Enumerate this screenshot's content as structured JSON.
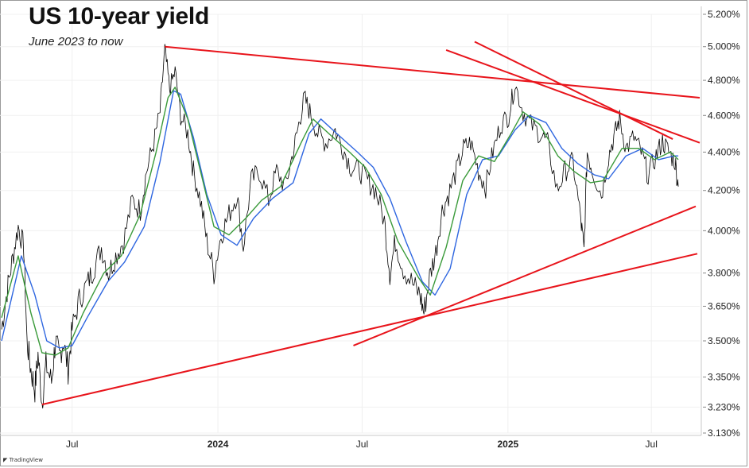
{
  "title": "US 10-year yield",
  "subtitle": "June 2023 to now",
  "logo_text": "TradingView",
  "colors": {
    "price": "#000000",
    "ma_fast": "#3a9a3a",
    "ma_slow": "#2e66e0",
    "trendline": "#e8141b"
  },
  "chart_data": {
    "type": "line",
    "title": "US 10-year yield",
    "subtitle": "June 2023 to now",
    "y_scale": "log",
    "ylim": [
      3.13,
      5.2
    ],
    "xlim": [
      "2023-04-01",
      "2025-08-31"
    ],
    "y_ticks": [
      "5.200%",
      "5.000%",
      "4.800%",
      "4.600%",
      "4.400%",
      "4.200%",
      "4.000%",
      "3.800%",
      "3.650%",
      "3.500%",
      "3.350%",
      "3.230%",
      "3.130%"
    ],
    "x_ticks": [
      {
        "label": "Jul",
        "date": "2023-07-01"
      },
      {
        "label": "2024",
        "date": "2024-01-01"
      },
      {
        "label": "Jul",
        "date": "2024-07-01"
      },
      {
        "label": "2025",
        "date": "2025-01-01"
      },
      {
        "label": "Jul",
        "date": "2025-07-01"
      }
    ],
    "grid": true,
    "series": [
      {
        "kind": "price",
        "points": [
          [
            "2023-04-03",
            3.55
          ],
          [
            "2023-04-10",
            3.72
          ],
          [
            "2023-04-17",
            3.87
          ],
          [
            "2023-04-24",
            4.02
          ],
          [
            "2023-05-01",
            3.92
          ],
          [
            "2023-05-05",
            3.5
          ],
          [
            "2023-05-10",
            3.38
          ],
          [
            "2023-05-15",
            3.3
          ],
          [
            "2023-05-19",
            3.44
          ],
          [
            "2023-05-24",
            3.25
          ],
          [
            "2023-05-29",
            3.4
          ],
          [
            "2023-06-05",
            3.33
          ],
          [
            "2023-06-10",
            3.5
          ],
          [
            "2023-06-15",
            3.43
          ],
          [
            "2023-06-20",
            3.5
          ],
          [
            "2023-06-26",
            3.38
          ],
          [
            "2023-07-01",
            3.55
          ],
          [
            "2023-07-10",
            3.68
          ],
          [
            "2023-07-20",
            3.75
          ],
          [
            "2023-07-28",
            3.82
          ],
          [
            "2023-08-07",
            3.92
          ],
          [
            "2023-08-16",
            3.8
          ],
          [
            "2023-08-25",
            3.88
          ],
          [
            "2023-09-04",
            3.95
          ],
          [
            "2023-09-15",
            4.15
          ],
          [
            "2023-09-25",
            4.1
          ],
          [
            "2023-10-03",
            4.3
          ],
          [
            "2023-10-12",
            4.45
          ],
          [
            "2023-10-20",
            4.62
          ],
          [
            "2023-10-26",
            4.98
          ],
          [
            "2023-11-01",
            4.75
          ],
          [
            "2023-11-08",
            4.85
          ],
          [
            "2023-11-15",
            4.6
          ],
          [
            "2023-11-24",
            4.5
          ],
          [
            "2023-12-01",
            4.3
          ],
          [
            "2023-12-10",
            4.15
          ],
          [
            "2023-12-18",
            3.95
          ],
          [
            "2023-12-27",
            3.8
          ],
          [
            "2024-01-05",
            3.98
          ],
          [
            "2024-01-15",
            4.08
          ],
          [
            "2024-01-25",
            4.18
          ],
          [
            "2024-02-02",
            3.92
          ],
          [
            "2024-02-12",
            4.25
          ],
          [
            "2024-02-22",
            4.3
          ],
          [
            "2024-03-05",
            4.15
          ],
          [
            "2024-03-15",
            4.3
          ],
          [
            "2024-03-26",
            4.22
          ],
          [
            "2024-04-05",
            4.4
          ],
          [
            "2024-04-12",
            4.55
          ],
          [
            "2024-04-19",
            4.7
          ],
          [
            "2024-04-26",
            4.62
          ],
          [
            "2024-05-06",
            4.5
          ],
          [
            "2024-05-16",
            4.45
          ],
          [
            "2024-05-28",
            4.52
          ],
          [
            "2024-06-07",
            4.42
          ],
          [
            "2024-06-17",
            4.32
          ],
          [
            "2024-06-28",
            4.3
          ],
          [
            "2024-07-08",
            4.25
          ],
          [
            "2024-07-18",
            4.2
          ],
          [
            "2024-07-29",
            4.05
          ],
          [
            "2024-08-05",
            3.8
          ],
          [
            "2024-08-12",
            3.95
          ],
          [
            "2024-08-22",
            3.82
          ],
          [
            "2024-09-03",
            3.75
          ],
          [
            "2024-09-12",
            3.7
          ],
          [
            "2024-09-17",
            3.62
          ],
          [
            "2024-09-24",
            3.78
          ],
          [
            "2024-10-02",
            3.9
          ],
          [
            "2024-10-10",
            4.1
          ],
          [
            "2024-10-18",
            4.18
          ],
          [
            "2024-10-28",
            4.3
          ],
          [
            "2024-11-06",
            4.42
          ],
          [
            "2024-11-15",
            4.45
          ],
          [
            "2024-11-25",
            4.3
          ],
          [
            "2024-12-04",
            4.22
          ],
          [
            "2024-12-13",
            4.4
          ],
          [
            "2024-12-23",
            4.55
          ],
          [
            "2025-01-02",
            4.6
          ],
          [
            "2025-01-10",
            4.78
          ],
          [
            "2025-01-20",
            4.62
          ],
          [
            "2025-01-30",
            4.55
          ],
          [
            "2025-02-10",
            4.5
          ],
          [
            "2025-02-20",
            4.45
          ],
          [
            "2025-03-04",
            4.2
          ],
          [
            "2025-03-14",
            4.3
          ],
          [
            "2025-03-24",
            4.35
          ],
          [
            "2025-04-03",
            4.05
          ],
          [
            "2025-04-07",
            3.9
          ],
          [
            "2025-04-11",
            4.4
          ],
          [
            "2025-04-18",
            4.3
          ],
          [
            "2025-04-29",
            4.18
          ],
          [
            "2025-05-08",
            4.38
          ],
          [
            "2025-05-16",
            4.5
          ],
          [
            "2025-05-22",
            4.58
          ],
          [
            "2025-05-30",
            4.42
          ],
          [
            "2025-06-09",
            4.48
          ],
          [
            "2025-06-18",
            4.4
          ],
          [
            "2025-06-27",
            4.28
          ],
          [
            "2025-07-07",
            4.38
          ],
          [
            "2025-07-15",
            4.46
          ],
          [
            "2025-07-23",
            4.4
          ],
          [
            "2025-07-31",
            4.35
          ],
          [
            "2025-08-04",
            4.22
          ]
        ]
      },
      {
        "kind": "ma_fast",
        "points": [
          [
            "2023-04-03",
            3.6
          ],
          [
            "2023-04-24",
            3.88
          ],
          [
            "2023-05-10",
            3.62
          ],
          [
            "2023-05-24",
            3.45
          ],
          [
            "2023-06-10",
            3.44
          ],
          [
            "2023-06-26",
            3.47
          ],
          [
            "2023-07-15",
            3.62
          ],
          [
            "2023-08-10",
            3.8
          ],
          [
            "2023-09-01",
            3.88
          ],
          [
            "2023-09-25",
            4.08
          ],
          [
            "2023-10-15",
            4.4
          ],
          [
            "2023-10-30",
            4.7
          ],
          [
            "2023-11-08",
            4.76
          ],
          [
            "2023-11-24",
            4.58
          ],
          [
            "2023-12-10",
            4.3
          ],
          [
            "2023-12-27",
            4.02
          ],
          [
            "2024-01-15",
            3.98
          ],
          [
            "2024-02-05",
            4.06
          ],
          [
            "2024-02-25",
            4.15
          ],
          [
            "2024-03-20",
            4.22
          ],
          [
            "2024-04-15",
            4.45
          ],
          [
            "2024-04-30",
            4.58
          ],
          [
            "2024-05-20",
            4.5
          ],
          [
            "2024-06-15",
            4.4
          ],
          [
            "2024-07-05",
            4.32
          ],
          [
            "2024-07-25",
            4.18
          ],
          [
            "2024-08-15",
            3.95
          ],
          [
            "2024-09-10",
            3.78
          ],
          [
            "2024-09-25",
            3.7
          ],
          [
            "2024-10-15",
            3.92
          ],
          [
            "2024-11-05",
            4.25
          ],
          [
            "2024-11-25",
            4.38
          ],
          [
            "2024-12-15",
            4.35
          ],
          [
            "2025-01-05",
            4.5
          ],
          [
            "2025-01-20",
            4.62
          ],
          [
            "2025-02-10",
            4.55
          ],
          [
            "2025-03-05",
            4.38
          ],
          [
            "2025-03-25",
            4.3
          ],
          [
            "2025-04-15",
            4.24
          ],
          [
            "2025-05-01",
            4.25
          ],
          [
            "2025-05-25",
            4.42
          ],
          [
            "2025-06-15",
            4.42
          ],
          [
            "2025-07-05",
            4.36
          ],
          [
            "2025-07-25",
            4.4
          ],
          [
            "2025-08-04",
            4.36
          ]
        ]
      },
      {
        "kind": "ma_slow",
        "points": [
          [
            "2023-04-03",
            3.5
          ],
          [
            "2023-04-28",
            3.88
          ],
          [
            "2023-05-15",
            3.7
          ],
          [
            "2023-05-30",
            3.5
          ],
          [
            "2023-06-15",
            3.47
          ],
          [
            "2023-07-01",
            3.48
          ],
          [
            "2023-07-20",
            3.6
          ],
          [
            "2023-08-15",
            3.76
          ],
          [
            "2023-09-05",
            3.85
          ],
          [
            "2023-09-30",
            4.02
          ],
          [
            "2023-10-20",
            4.35
          ],
          [
            "2023-11-06",
            4.74
          ],
          [
            "2023-11-15",
            4.72
          ],
          [
            "2023-12-01",
            4.48
          ],
          [
            "2023-12-18",
            4.18
          ],
          [
            "2024-01-05",
            3.98
          ],
          [
            "2024-01-25",
            3.93
          ],
          [
            "2024-02-15",
            4.06
          ],
          [
            "2024-03-10",
            4.16
          ],
          [
            "2024-04-05",
            4.24
          ],
          [
            "2024-04-25",
            4.5
          ],
          [
            "2024-05-10",
            4.58
          ],
          [
            "2024-05-30",
            4.5
          ],
          [
            "2024-06-25",
            4.4
          ],
          [
            "2024-07-15",
            4.32
          ],
          [
            "2024-08-05",
            4.16
          ],
          [
            "2024-08-25",
            3.95
          ],
          [
            "2024-09-15",
            3.76
          ],
          [
            "2024-10-01",
            3.7
          ],
          [
            "2024-10-20",
            3.82
          ],
          [
            "2024-11-10",
            4.18
          ],
          [
            "2024-11-30",
            4.36
          ],
          [
            "2024-12-20",
            4.38
          ],
          [
            "2025-01-10",
            4.52
          ],
          [
            "2025-01-28",
            4.6
          ],
          [
            "2025-02-18",
            4.56
          ],
          [
            "2025-03-10",
            4.42
          ],
          [
            "2025-03-30",
            4.34
          ],
          [
            "2025-04-20",
            4.28
          ],
          [
            "2025-05-08",
            4.26
          ],
          [
            "2025-05-30",
            4.38
          ],
          [
            "2025-06-20",
            4.42
          ],
          [
            "2025-07-10",
            4.36
          ],
          [
            "2025-07-30",
            4.38
          ],
          [
            "2025-08-04",
            4.38
          ]
        ]
      }
    ],
    "trendlines": [
      {
        "from": [
          "2023-10-26",
          5.0
        ],
        "to": [
          "2025-08-31",
          4.7
        ]
      },
      {
        "from": [
          "2024-10-15",
          4.98
        ],
        "to": [
          "2025-08-31",
          4.45
        ]
      },
      {
        "from": [
          "2024-11-20",
          5.03
        ],
        "to": [
          "2025-07-28",
          4.47
        ]
      },
      {
        "from": [
          "2023-05-24",
          3.24
        ],
        "to": [
          "2025-08-28",
          3.89
        ]
      },
      {
        "from": [
          "2024-06-20",
          3.48
        ],
        "to": [
          "2025-08-26",
          4.12
        ]
      }
    ]
  }
}
